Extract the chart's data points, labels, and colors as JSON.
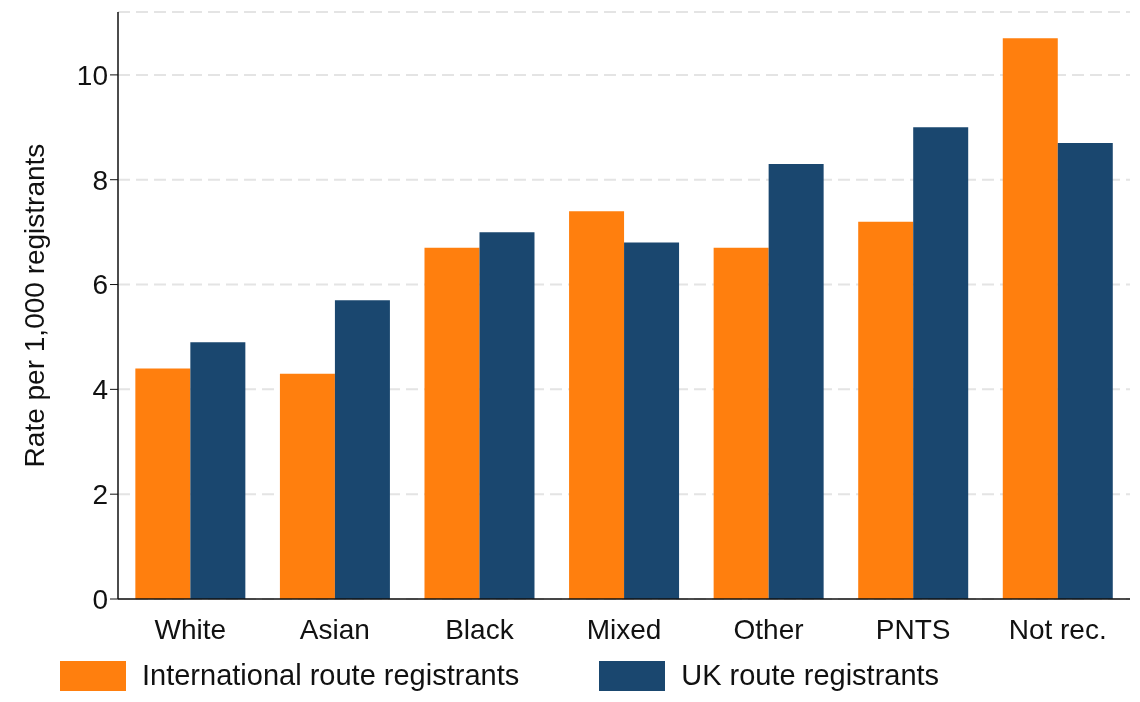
{
  "chart_data": {
    "type": "bar",
    "ylabel": "Rate per 1,000 registrants",
    "categories": [
      "White",
      "Asian",
      "Black",
      "Mixed",
      "Other",
      "PNTS",
      "Not rec."
    ],
    "series": [
      {
        "name": "International route registrants",
        "color": "#ff7f0e",
        "values": [
          4.4,
          4.3,
          6.7,
          7.4,
          6.7,
          7.2,
          10.7
        ]
      },
      {
        "name": "UK route registrants",
        "color": "#1a476f",
        "values": [
          4.9,
          5.7,
          7.0,
          6.8,
          8.3,
          9.0,
          8.7
        ]
      }
    ],
    "ylim": [
      0,
      11.2
    ],
    "yticks": [
      0,
      2,
      4,
      6,
      8,
      10
    ],
    "grid": "y",
    "legend": "bottom"
  }
}
